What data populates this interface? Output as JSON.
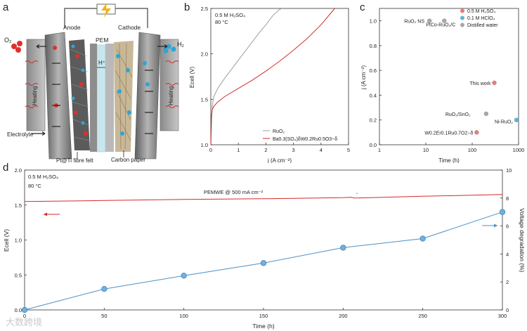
{
  "panel_letters": {
    "a": "a",
    "b": "b",
    "c": "c",
    "d": "d"
  },
  "panel_a": {
    "anode": "Anode",
    "cathode": "Cathode",
    "pem": "PEM",
    "o2": "O₂",
    "h2": "H₂",
    "h_plus": "H⁺",
    "heating_left": "Heating",
    "heating_right": "Heating",
    "electrolyte": "Electrolyte",
    "fibre_felt": "Pt@Ti fibre felt",
    "carbon_paper": "Carbon paper",
    "colors": {
      "red": "#e0302a",
      "cyan": "#2aa6d8",
      "frame": "#9a9a9a",
      "plate": "#6f6f6f"
    }
  },
  "chart_data": [
    {
      "panel": "b",
      "type": "line",
      "annotations": [
        "0.5 M H₂SO₄",
        "80 °C"
      ],
      "xlabel": "j (A cm⁻²)",
      "ylabel": "Ecell (V)",
      "xlim": [
        0,
        5
      ],
      "ylim": [
        1.0,
        2.5
      ],
      "xticks": [
        "0",
        "1",
        "2",
        "3",
        "4",
        "5"
      ],
      "yticks": [
        "1.0",
        "1.5",
        "2.0",
        "2.5"
      ],
      "legend": [
        "RuO₂",
        "Ba0.3(SO₄)δW0.2Ru0.5O3−δ"
      ],
      "series": [
        {
          "name": "RuO2",
          "color": "#9e9e9e",
          "x": [
            0,
            0.05,
            0.1,
            0.25,
            0.5,
            0.75,
            1.0,
            1.25,
            1.5,
            1.75,
            2.0,
            2.25,
            2.5,
            2.6
          ],
          "y": [
            1.0,
            1.42,
            1.52,
            1.62,
            1.73,
            1.83,
            1.93,
            2.03,
            2.13,
            2.23,
            2.32,
            2.42,
            2.49,
            2.5
          ]
        },
        {
          "name": "BaSWRu",
          "color": "#d42a2a",
          "x": [
            0,
            0.02,
            0.05,
            0.1,
            0.25,
            0.5,
            1.0,
            1.5,
            2.0,
            2.5,
            3.0,
            3.5,
            4.0,
            4.5
          ],
          "y": [
            1.0,
            1.32,
            1.38,
            1.42,
            1.47,
            1.53,
            1.62,
            1.71,
            1.81,
            1.92,
            2.04,
            2.17,
            2.32,
            2.5
          ]
        }
      ]
    },
    {
      "panel": "c",
      "type": "scatter",
      "xlabel": "Time (h)",
      "ylabel": "j (A cm⁻²)",
      "xscale": "log",
      "xlim": [
        1,
        1000
      ],
      "ylim": [
        0,
        1.1
      ],
      "xticks": [
        "1",
        "10",
        "100",
        "1000"
      ],
      "yticks": [
        "0.0",
        "0.2",
        "0.4",
        "0.6",
        "0.8",
        "1.0"
      ],
      "legend": [
        {
          "label": "0.5 M H₂SO₄",
          "color": "#f07a6e"
        },
        {
          "label": "0.1 M HClO₄",
          "color": "#5fb4e0"
        },
        {
          "label": "Distilled water",
          "color": "#a8a8a8"
        }
      ],
      "points": [
        {
          "label": "RuO₂ NS",
          "x": 12,
          "y": 1.0,
          "color": "#a8a8a8"
        },
        {
          "label": "PtCo-RuO₂/C",
          "x": 25,
          "y": 1.0,
          "color": "#a8a8a8"
        },
        {
          "label": "This work",
          "x": 300,
          "y": 0.5,
          "color": "#f07a6e"
        },
        {
          "label": "RuO₂/SnO₂",
          "x": 200,
          "y": 0.25,
          "color": "#a8a8a8"
        },
        {
          "label": "Ni-RuO₂",
          "x": 1000,
          "y": 0.2,
          "color": "#5fb4e0"
        },
        {
          "label": "W0.2Er0.1Ru0.7O2−δ",
          "x": 125,
          "y": 0.1,
          "color": "#f07a6e"
        }
      ]
    },
    {
      "panel": "d",
      "type": "line",
      "annotations": [
        "0.5 M H₂SO₄",
        "80 °C",
        "PEMWE @ 500 mA cm⁻²"
      ],
      "xlabel": "Time (h)",
      "ylabel": "Ecell (V)",
      "y2label": "Voltage degradation (%)",
      "xlim": [
        0,
        300
      ],
      "ylim": [
        0,
        2.0
      ],
      "y2lim": [
        0,
        10
      ],
      "xticks": [
        "0",
        "50",
        "100",
        "150",
        "200",
        "250",
        "300"
      ],
      "yticks": [
        "0.0",
        "0.5",
        "1.0",
        "1.5",
        "2.0"
      ],
      "y2ticks": [
        "0",
        "2",
        "4",
        "6",
        "8",
        "10"
      ],
      "series": [
        {
          "name": "Ecell",
          "axis": "left",
          "color": "#d42a2a",
          "x": [
            0,
            50,
            100,
            150,
            200,
            205,
            207,
            250,
            300
          ],
          "y": [
            1.55,
            1.565,
            1.58,
            1.59,
            1.605,
            1.61,
            1.6,
            1.625,
            1.65
          ]
        },
        {
          "name": "Voltage degradation",
          "axis": "right",
          "color": "#4a90c8",
          "x": [
            0,
            50,
            100,
            150,
            200,
            250,
            300
          ],
          "y": [
            0,
            1.5,
            2.45,
            3.35,
            4.45,
            5.1,
            7.0
          ]
        }
      ]
    }
  ],
  "watermark": "大数跨境"
}
